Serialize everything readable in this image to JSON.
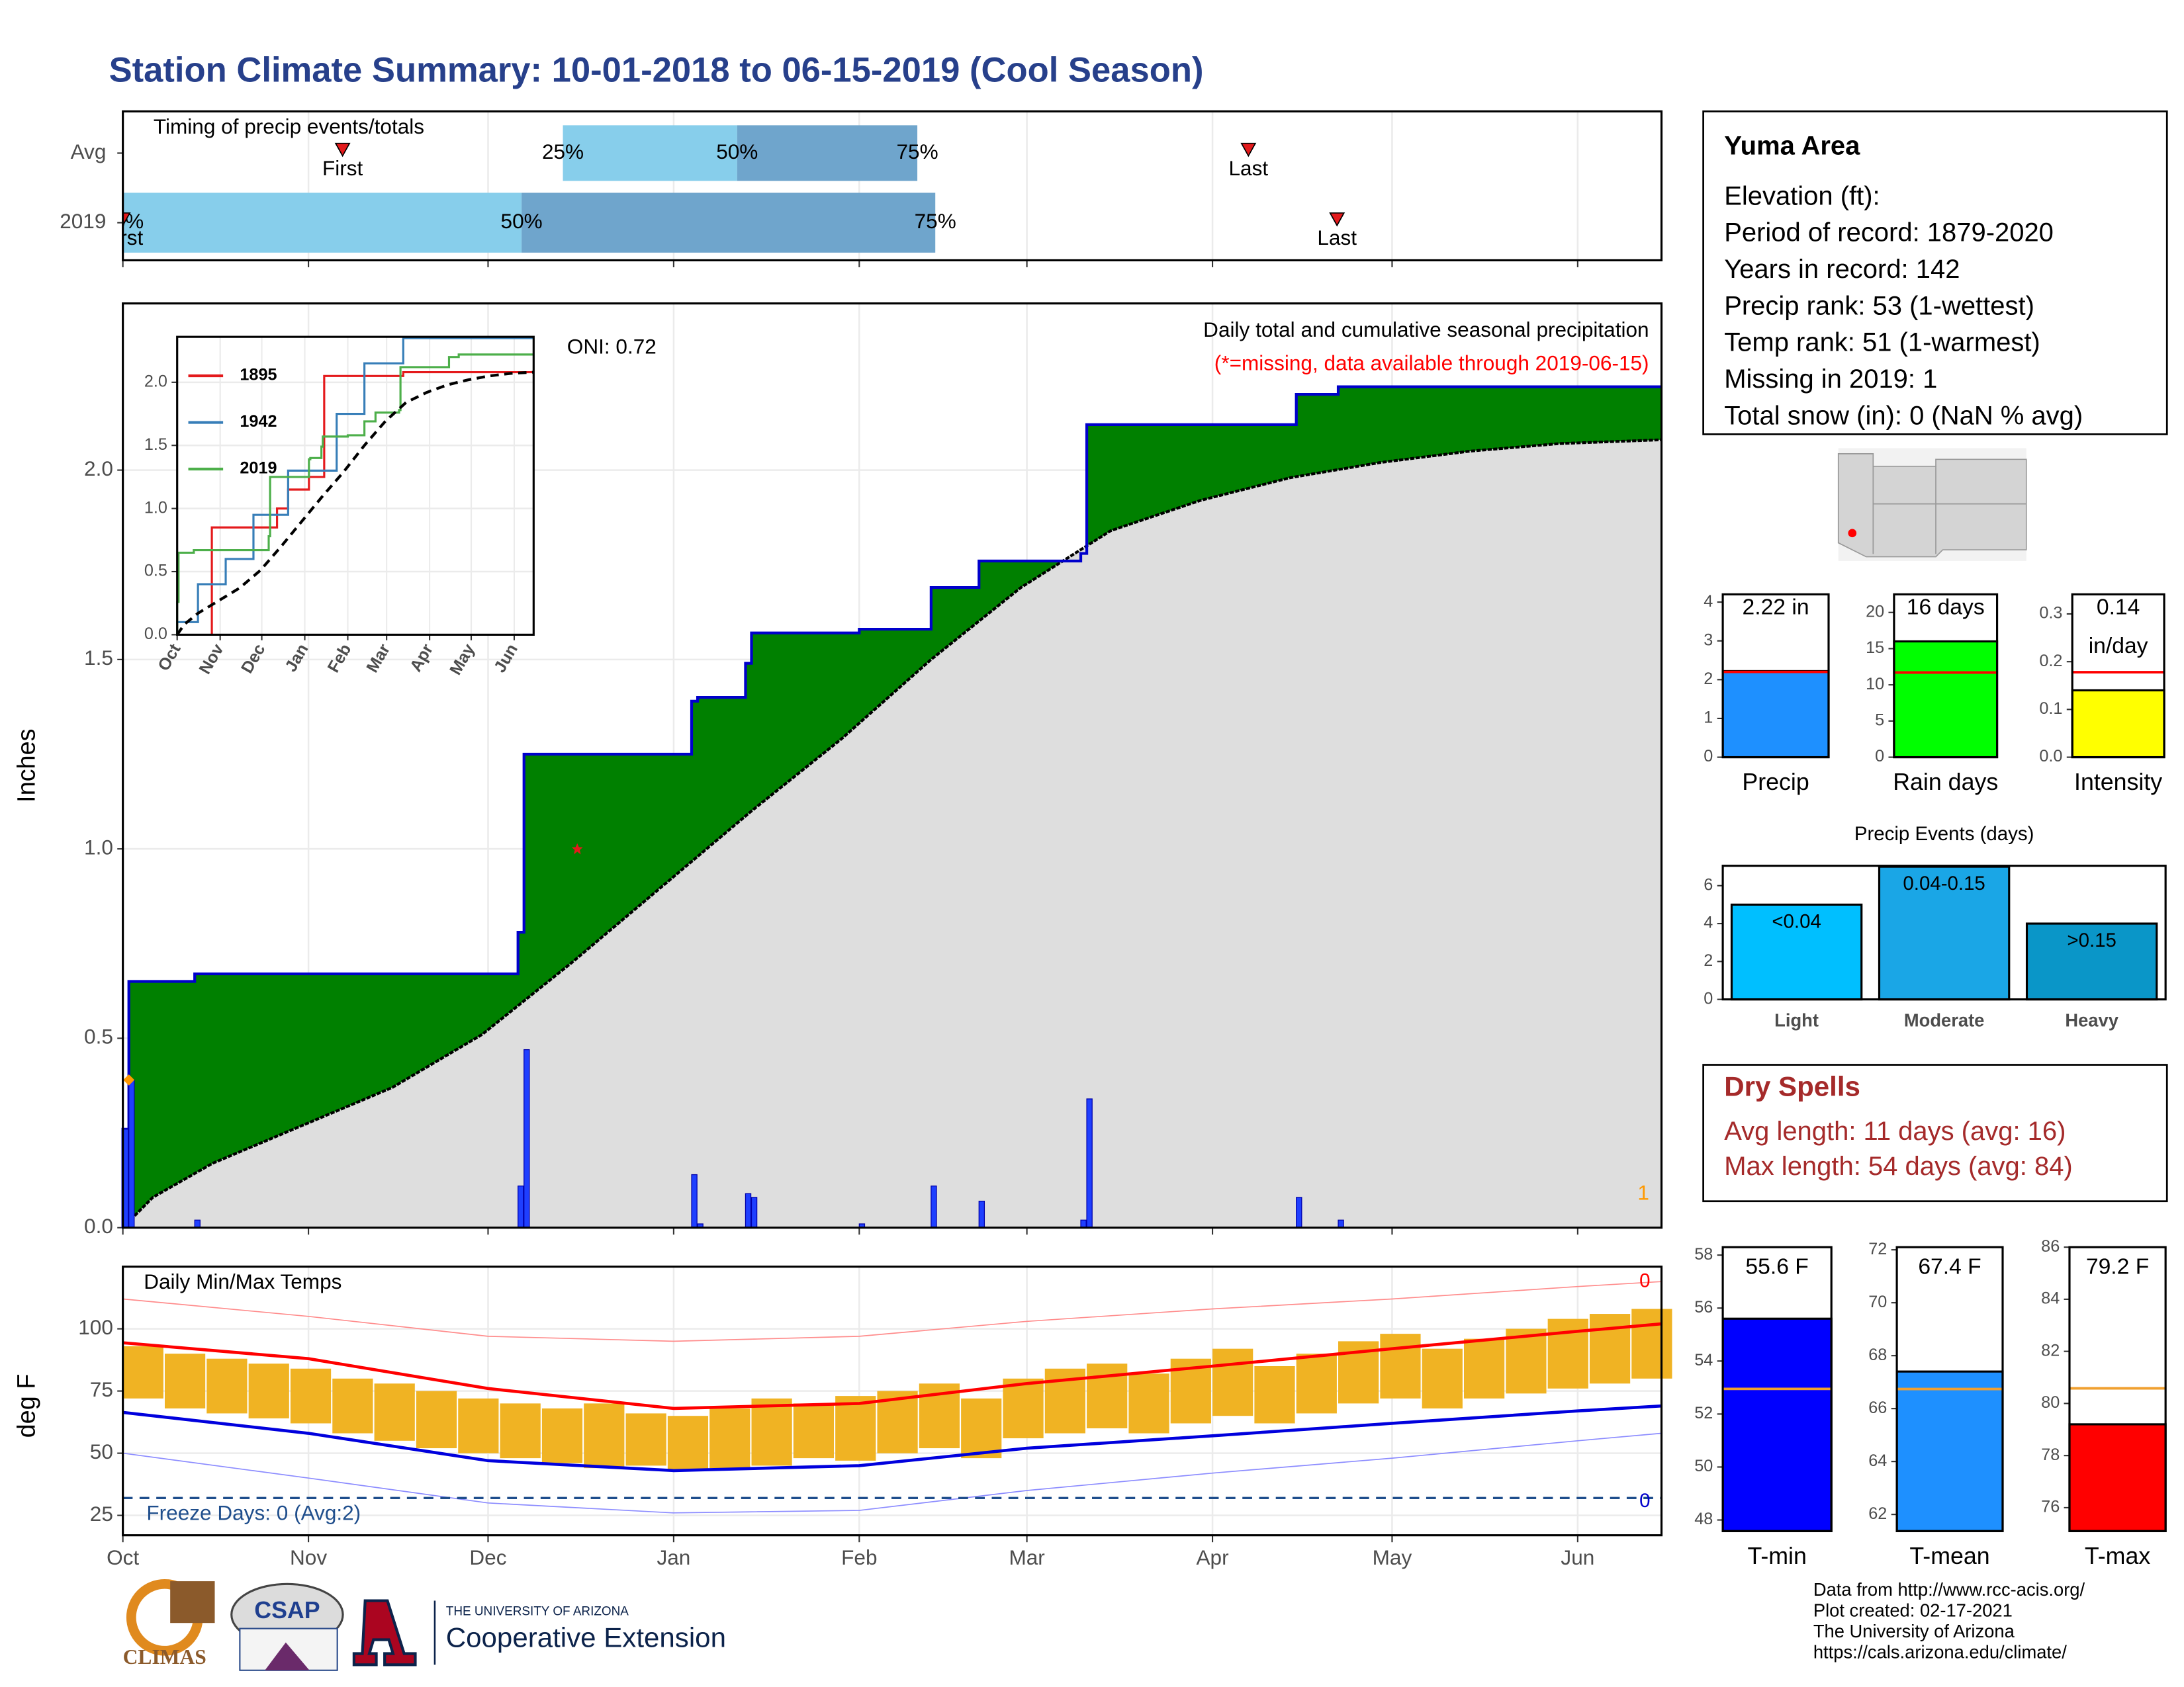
{
  "title": "Station Climate Summary: 10-01-2018 to 06-15-2019 (Cool Season)",
  "station": {
    "name": "Yuma Area",
    "lines": [
      "Elevation (ft):",
      "Period of record: 1879-2020",
      "Years in record: 142",
      "Precip rank: 53 (1-wettest)",
      "Temp rank: 51 (1-warmest)",
      "Missing in 2019: 1",
      "Total snow (in): 0 (NaN % avg)"
    ]
  },
  "dry_spells": {
    "title": "Dry Spells",
    "lines": [
      "Avg length: 11 days (avg: 16)",
      "Max length: 54 days (avg: 84)"
    ]
  },
  "credits": [
    "Data from http://www.rcc-acis.org/",
    "Plot created: 02-17-2021",
    "The University of Arizona",
    "https://cals.arizona.edu/climate/"
  ],
  "logos": {
    "climas": "CLIMAS",
    "csap": "CSAP",
    "university": "THE UNIVERSITY OF ARIZONA",
    "extension": "Cooperative Extension"
  },
  "chart_data": [
    {
      "type": "timing",
      "title": "Timing of precip events/totals",
      "xlim": [
        0,
        257
      ],
      "xticks": [
        0,
        31,
        61,
        92,
        123,
        151,
        182,
        212,
        243
      ],
      "rows": [
        {
          "name": "Avg",
          "first": 36.7,
          "q25": 73.5,
          "q50": 102.6,
          "q75": 132.7,
          "last": 188
        },
        {
          "name": "2019",
          "first": 0,
          "q25": 0,
          "q50": 66.6,
          "q75": 135.7,
          "last": 202.8
        }
      ],
      "labels": {
        "first": "First",
        "last": "Last",
        "q25": "25%",
        "q50": "50%",
        "q75": "75%"
      },
      "colors": {
        "light": "#87ceeb",
        "dark": "#6fa5cc",
        "marker": "#e31a1c"
      }
    },
    {
      "type": "precip",
      "ylabel": "Inches",
      "subtitle": "Daily total and cumulative seasonal precipitation",
      "note": "(*=missing, data available through 2019-06-15)",
      "oni": "ONI: 0.72",
      "missing_label": "1",
      "xlim": [
        0,
        257
      ],
      "xticks": [
        0,
        31,
        61,
        92,
        123,
        151,
        182,
        212,
        243
      ],
      "ylim": [
        0,
        2.44
      ],
      "yticks": [
        {
          "value": 0,
          "label": "0.0"
        },
        {
          "value": 0.5,
          "label": "0.5"
        },
        {
          "value": 1,
          "label": "1.0"
        },
        {
          "value": 1.5,
          "label": "1.5"
        },
        {
          "value": 2,
          "label": "2.0"
        }
      ],
      "grid": true,
      "daily": {
        "x": [
          0,
          1,
          12,
          66,
          67,
          95,
          96,
          104,
          105,
          123,
          135,
          143,
          160,
          161,
          196,
          203
        ],
        "values": [
          0.26,
          0.39,
          0.02,
          0.11,
          0.47,
          0.14,
          0.01,
          0.09,
          0.08,
          0.01,
          0.11,
          0.07,
          0.02,
          0.34,
          0.08,
          0.02
        ],
        "color": "#1f3fff"
      },
      "cumulative": {
        "x": [
          0,
          1,
          12,
          66,
          67,
          95,
          96,
          104,
          105,
          123,
          135,
          143,
          160,
          161,
          196,
          203
        ],
        "values": [
          0.26,
          0.65,
          0.67,
          0.78,
          1.25,
          1.39,
          1.4,
          1.49,
          1.57,
          1.58,
          1.69,
          1.76,
          1.78,
          2.12,
          2.2,
          2.22
        ],
        "color": "#0000cc",
        "fill": "#008000"
      },
      "average": {
        "x": [
          0,
          5,
          15,
          30,
          45,
          60,
          75,
          90,
          105,
          120,
          135,
          150,
          165,
          180,
          195,
          210,
          225,
          240,
          257
        ],
        "values": [
          0,
          0.08,
          0.17,
          0.27,
          0.37,
          0.51,
          0.7,
          0.9,
          1.1,
          1.29,
          1.5,
          1.69,
          1.84,
          1.92,
          1.98,
          2.02,
          2.05,
          2.07,
          2.08
        ],
        "fill": "#dedede"
      },
      "markers": [
        {
          "x": 1,
          "y": 0.39,
          "shape": "diamond",
          "color": "#ff9900"
        },
        {
          "x": 75.9,
          "y": 1.0,
          "shape": "star",
          "color": "#e31a1c"
        }
      ]
    },
    {
      "type": "line",
      "xlim": [
        0,
        257
      ],
      "ylim": [
        0,
        2.36
      ],
      "xticks": [
        {
          "value": 0,
          "label": "Oct"
        },
        {
          "value": 31,
          "label": "Nov"
        },
        {
          "value": 61,
          "label": "Dec"
        },
        {
          "value": 92,
          "label": "Jan"
        },
        {
          "value": 123,
          "label": "Feb"
        },
        {
          "value": 151,
          "label": "Mar"
        },
        {
          "value": 182,
          "label": "Apr"
        },
        {
          "value": 212,
          "label": "May"
        },
        {
          "value": 243,
          "label": "Jun"
        }
      ],
      "yticks": [
        {
          "value": 0,
          "label": "0.0"
        },
        {
          "value": 0.5,
          "label": "0.5"
        },
        {
          "value": 1,
          "label": "1.0"
        },
        {
          "value": 1.5,
          "label": "1.5"
        },
        {
          "value": 2,
          "label": "2.0"
        }
      ],
      "grid": true,
      "series": [
        {
          "name": "1895",
          "color": "#e41a1c",
          "step": true,
          "x": [
            25,
            25,
            72,
            80,
            95,
            106,
            163
          ],
          "values": [
            0,
            0.85,
            1.0,
            1.15,
            1.25,
            2.05,
            2.08
          ]
        },
        {
          "name": "1942",
          "color": "#377eb8",
          "step": true,
          "x": [
            0,
            15,
            35,
            55,
            80,
            115,
            135,
            163
          ],
          "values": [
            0.1,
            0.4,
            0.6,
            0.95,
            1.3,
            1.75,
            2.15,
            2.35
          ]
        },
        {
          "name": "2019",
          "color": "#4daf4a",
          "step": true,
          "x": [
            0,
            1,
            12,
            66,
            67,
            95,
            96,
            104,
            105,
            123,
            135,
            143,
            160,
            161,
            196,
            203
          ],
          "values": [
            0.26,
            0.65,
            0.67,
            0.78,
            1.25,
            1.39,
            1.4,
            1.49,
            1.57,
            1.58,
            1.69,
            1.76,
            1.78,
            2.12,
            2.2,
            2.22
          ]
        },
        {
          "color": "#000000",
          "dash": true,
          "x": [
            0,
            5,
            15,
            30,
            45,
            60,
            75,
            90,
            105,
            120,
            135,
            150,
            165,
            180,
            195,
            210,
            225,
            240,
            257
          ],
          "values": [
            0,
            0.08,
            0.17,
            0.27,
            0.37,
            0.51,
            0.7,
            0.9,
            1.1,
            1.29,
            1.5,
            1.69,
            1.84,
            1.92,
            1.98,
            2.02,
            2.05,
            2.07,
            2.08
          ]
        }
      ]
    },
    {
      "type": "temperature",
      "title": "Daily Min/Max Temps",
      "ylabel": "deg F",
      "freeze_text": "Freeze Days: 0 (Avg:2)",
      "freeze_line": 32,
      "record_high_days": 0,
      "record_low_days": 0,
      "xlim": [
        0,
        257
      ],
      "xticks": [
        {
          "value": 0,
          "label": "Oct"
        },
        {
          "value": 31,
          "label": "Nov"
        },
        {
          "value": 61,
          "label": "Dec"
        },
        {
          "value": 92,
          "label": "Jan"
        },
        {
          "value": 123,
          "label": "Feb"
        },
        {
          "value": 151,
          "label": "Mar"
        },
        {
          "value": 182,
          "label": "Apr"
        },
        {
          "value": 212,
          "label": "May"
        },
        {
          "value": 243,
          "label": "Jun"
        }
      ],
      "ylim": [
        17,
        125
      ],
      "yticks": [
        25,
        50,
        75,
        100
      ],
      "grid": true,
      "days": [
        0,
        7,
        14,
        21,
        28,
        35,
        42,
        49,
        56,
        63,
        70,
        77,
        84,
        91,
        98,
        105,
        112,
        119,
        126,
        133,
        140,
        147,
        154,
        161,
        168,
        175,
        182,
        189,
        196,
        203,
        210,
        217,
        224,
        231,
        238,
        245,
        252
      ],
      "tmax": [
        93,
        90,
        88,
        86,
        84,
        80,
        78,
        75,
        72,
        70,
        68,
        70,
        66,
        65,
        68,
        72,
        70,
        73,
        75,
        78,
        72,
        80,
        84,
        86,
        82,
        88,
        92,
        85,
        90,
        95,
        98,
        92,
        96,
        100,
        104,
        106,
        108
      ],
      "tmin": [
        72,
        68,
        66,
        64,
        62,
        58,
        55,
        52,
        50,
        48,
        46,
        44,
        45,
        43,
        44,
        45,
        48,
        47,
        50,
        52,
        48,
        56,
        58,
        60,
        58,
        62,
        65,
        62,
        66,
        70,
        72,
        68,
        72,
        74,
        76,
        78,
        80
      ],
      "normal_x": [
        0,
        31,
        61,
        92,
        123,
        151,
        182,
        212,
        243,
        257
      ],
      "normal_max": [
        94.4,
        88,
        76,
        68,
        70,
        78,
        85,
        92,
        99,
        102
      ],
      "normal_min": [
        66.4,
        58,
        47,
        43,
        45,
        52,
        57,
        62,
        67,
        69
      ],
      "record_max": [
        112,
        105,
        97,
        95,
        97,
        103,
        108,
        112,
        117,
        119
      ],
      "record_min": [
        50,
        40,
        30,
        26,
        27,
        35,
        42,
        48,
        55,
        58
      ],
      "colors": {
        "bars": "#f0b323",
        "normal_max": "#ff0000",
        "normal_min": "#0000dd",
        "record_max": "#ff8c8c",
        "record_min": "#8c8cff",
        "freeze": "#1f4e8c"
      }
    },
    {
      "type": "bar",
      "categories": [
        "Precip"
      ],
      "values": [
        2.22
      ],
      "value_labels": [
        "2.22 in"
      ],
      "average": 2.2,
      "average_color": "#ff0000",
      "color": "#1e90ff",
      "ylim": [
        0,
        4.2
      ],
      "yticks": [
        0,
        1,
        2,
        3,
        4
      ]
    },
    {
      "type": "bar",
      "categories": [
        "Rain days"
      ],
      "values": [
        16
      ],
      "value_labels": [
        "16 days"
      ],
      "average": 11.7,
      "average_color": "#ff0000",
      "color": "#00ff00",
      "ylim": [
        0,
        22.5
      ],
      "yticks": [
        0,
        5,
        10,
        15,
        20
      ]
    },
    {
      "type": "bar",
      "categories": [
        "Intensity"
      ],
      "values": [
        0.14
      ],
      "value_labels": [
        "0.14"
      ],
      "unit": "in/day",
      "average": 0.178,
      "average_color": "#ff0000",
      "color": "#ffff00",
      "ylim": [
        0,
        0.341
      ],
      "yticks": [
        {
          "value": 0,
          "label": "0.0"
        },
        {
          "value": 0.1,
          "label": "0.1"
        },
        {
          "value": 0.2,
          "label": "0.2"
        },
        {
          "value": 0.3,
          "label": "0.3"
        }
      ]
    },
    {
      "type": "bar",
      "title": "Precip Events (days)",
      "categories": [
        "Light",
        "Moderate",
        "Heavy"
      ],
      "values": [
        5,
        7,
        4
      ],
      "value_labels": [
        "<0.04",
        "0.04-0.15",
        ">0.15"
      ],
      "colors": [
        "#00bfff",
        "#1aa6e6",
        "#0a96c8"
      ],
      "ylim": [
        0,
        7.05
      ],
      "yticks": [
        0,
        2,
        4,
        6
      ]
    },
    {
      "type": "bar",
      "categories": [
        "T-min"
      ],
      "values": [
        55.6
      ],
      "value_labels": [
        "55.6 F"
      ],
      "average": 52.95,
      "average_color": "#f0a030",
      "color": "#0000ff",
      "ylim": [
        47.58,
        58.3
      ],
      "yticks": [
        48,
        50,
        52,
        54,
        56,
        58
      ]
    },
    {
      "type": "bar",
      "categories": [
        "T-mean"
      ],
      "values": [
        67.4
      ],
      "value_labels": [
        "67.4 F"
      ],
      "average": 66.74,
      "average_color": "#f0a030",
      "color": "#1e90ff",
      "ylim": [
        61.37,
        72.1
      ],
      "yticks": [
        62,
        64,
        66,
        68,
        70,
        72
      ]
    },
    {
      "type": "bar",
      "categories": [
        "T-max"
      ],
      "values": [
        79.2
      ],
      "value_labels": [
        "79.2 F"
      ],
      "average": 80.58,
      "average_color": "#f0a030",
      "color": "#ff0000",
      "ylim": [
        75.1,
        86
      ],
      "yticks": [
        76,
        78,
        80,
        82,
        84,
        86
      ]
    }
  ]
}
